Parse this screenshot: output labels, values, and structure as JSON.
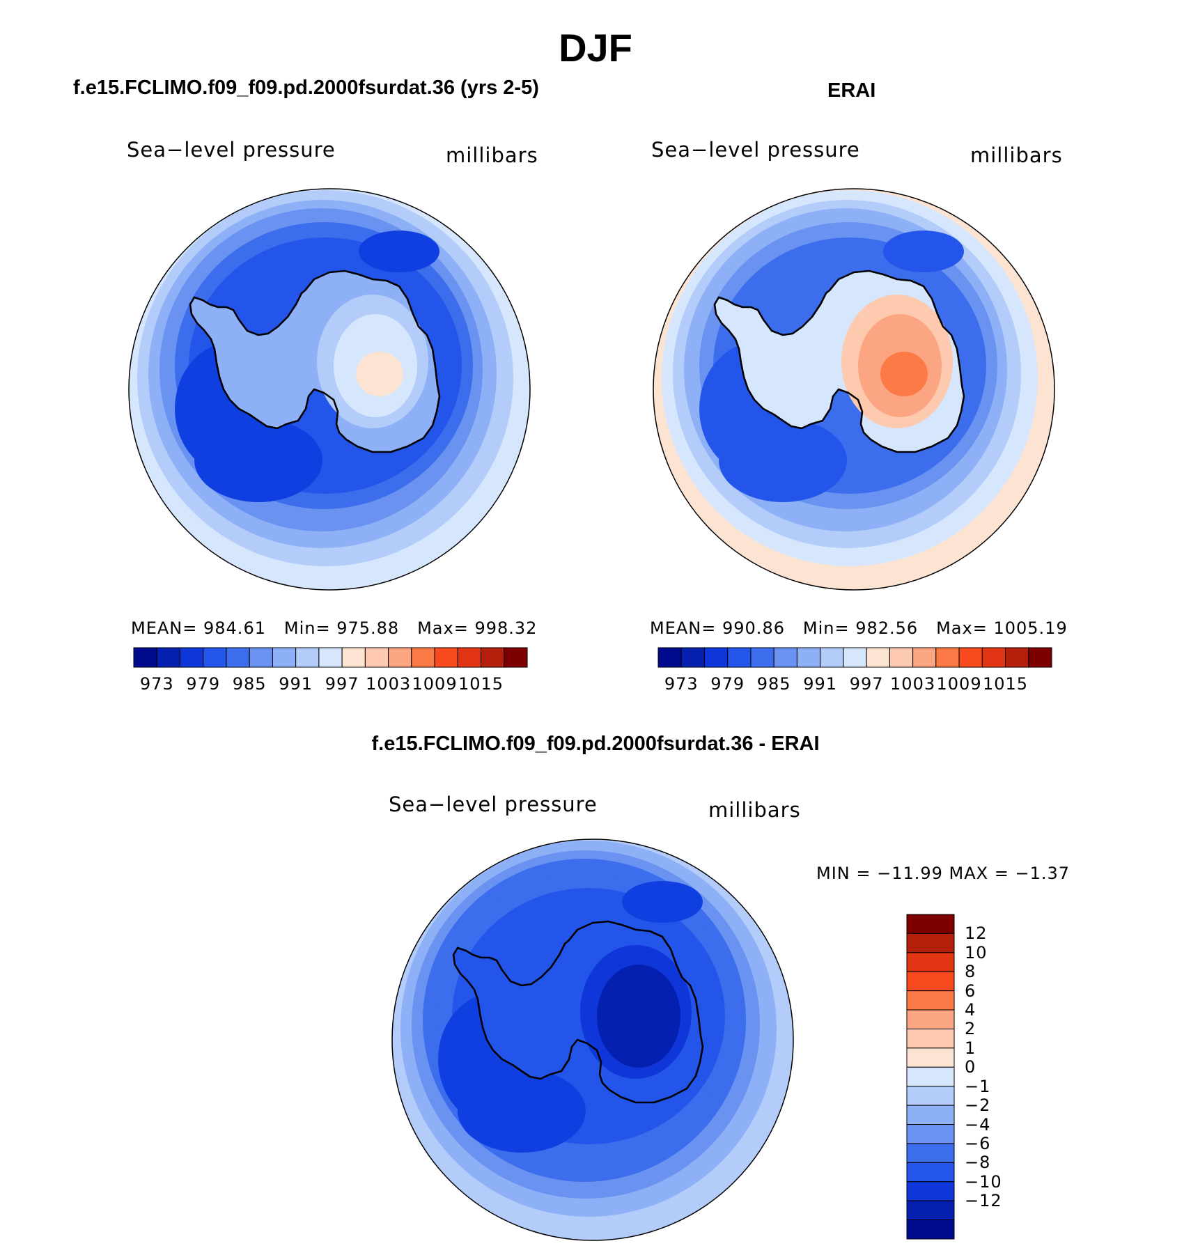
{
  "title": "DJF",
  "panels": [
    {
      "case": "f.e15.FCLIMO.f09_f09.pd.2000fsurdat.36 (yrs 2-5)",
      "variable": "Sea−level pressure",
      "units": "millibars",
      "stats": {
        "mean_label": "MEAN=",
        "mean": "984.61",
        "min_label": "Min=",
        "min": "975.88",
        "max_label": "Max=",
        "max": "998.32"
      },
      "field": {
        "outer": "#d6e6fd",
        "ring1": "#b4ccfa",
        "ring2": "#8eb0f6",
        "ring3": "#6a92f0",
        "ring4": "#3c6ded",
        "core": "#2455ea",
        "deep": "#0f3fe0",
        "cap1": "#8eb0f6",
        "cap2": "#b4ccfa",
        "cap3": "#d6e6fd",
        "hi": "#fde4d2"
      }
    },
    {
      "case": "ERAI",
      "variable": "Sea−level pressure",
      "units": "millibars",
      "stats": {
        "mean_label": "MEAN=",
        "mean": "990.86",
        "min_label": "Min=",
        "min": "982.56",
        "max_label": "Max=",
        "max": "1005.19"
      },
      "field": {
        "outer": "#fde4d2",
        "ring1": "#d6e6fd",
        "ring2": "#b4ccfa",
        "ring3": "#8eb0f6",
        "ring4": "#6a92f0",
        "core": "#3c6ded",
        "deep": "#2455ea",
        "cap1": "#d6e6fd",
        "cap2": "#fdc9af",
        "cap3": "#fca582",
        "hi": "#fb7a45"
      }
    }
  ],
  "colorbar": {
    "colors": [
      "#000a8c",
      "#0520b0",
      "#0f36d8",
      "#2455ea",
      "#3c6ded",
      "#6a92f0",
      "#8eb0f6",
      "#b4ccfa",
      "#d6e6fd",
      "#fde4d2",
      "#fdc9af",
      "#fca582",
      "#fb7a45",
      "#f84a1e",
      "#e03412",
      "#b41e0a",
      "#7d0000"
    ],
    "labels": [
      "973",
      "979",
      "985",
      "991",
      "997",
      "1003",
      "1009",
      "1015"
    ]
  },
  "diff": {
    "title": "f.e15.FCLIMO.f09_f09.pd.2000fsurdat.36 - ERAI",
    "variable": "Sea−level pressure",
    "units": "millibars",
    "minmax": "MIN = −11.99 MAX =  −1.37",
    "field": {
      "outer": "#b4ccfa",
      "ring1": "#8eb0f6",
      "ring2": "#6a92f0",
      "ring3": "#3c6ded",
      "ring4": "#3c6ded",
      "core": "#2455ea",
      "deep": "#0f3fe0",
      "cap1": "#2455ea",
      "cap2": "#0f36d8",
      "cap3": "#0520b0",
      "hi": "#0520b0"
    },
    "colorbar": {
      "colors": [
        "#7d0000",
        "#b41e0a",
        "#e03412",
        "#f84a1e",
        "#fb7a45",
        "#fca582",
        "#fdc9af",
        "#fde4d2",
        "#d6e6fd",
        "#b4ccfa",
        "#8eb0f6",
        "#6a92f0",
        "#3c6ded",
        "#2455ea",
        "#0f36d8",
        "#0520b0",
        "#000a8c"
      ],
      "labels": [
        "12",
        "10",
        "8",
        "6",
        "4",
        "2",
        "1",
        "0",
        "−1",
        "−2",
        "−4",
        "−6",
        "−8",
        "−10",
        "−12"
      ]
    }
  }
}
